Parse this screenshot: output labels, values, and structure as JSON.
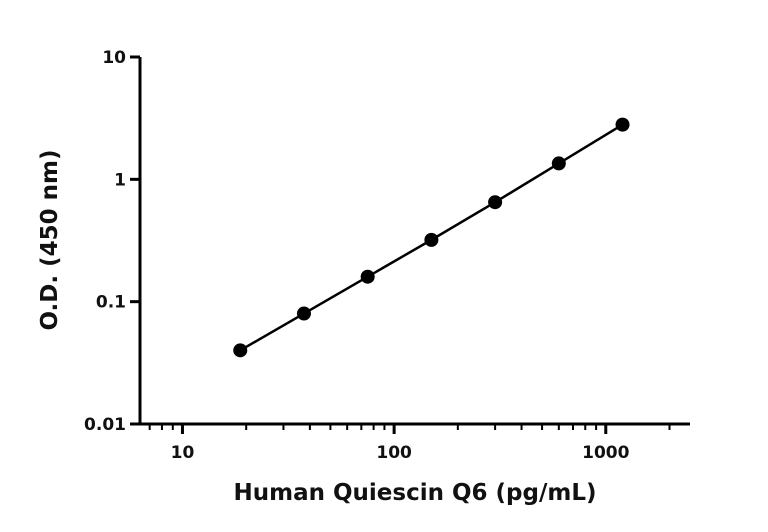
{
  "chart_data": {
    "type": "scatter",
    "x_label": "Human Quiescin Q6 (pg/mL)",
    "y_label": "O.D. (450 nm)",
    "xscale": "log",
    "yscale": "log",
    "xlim": [
      6.3,
      2500
    ],
    "ylim": [
      0.01,
      10
    ],
    "xticks": [
      10,
      100,
      1000
    ],
    "xminorticks": [
      7,
      8,
      9,
      20,
      30,
      40,
      50,
      60,
      70,
      80,
      90,
      200,
      300,
      400,
      500,
      600,
      700,
      800,
      900,
      2000
    ],
    "yticks": [
      0.01,
      0.1,
      1,
      10
    ],
    "grid": false,
    "series": [
      {
        "color": "#000000",
        "x": [
          18.75,
          37.5,
          75,
          150,
          300,
          600,
          1200
        ],
        "values": [
          0.04,
          0.08,
          0.16,
          0.32,
          0.65,
          1.35,
          2.8
        ]
      }
    ]
  }
}
